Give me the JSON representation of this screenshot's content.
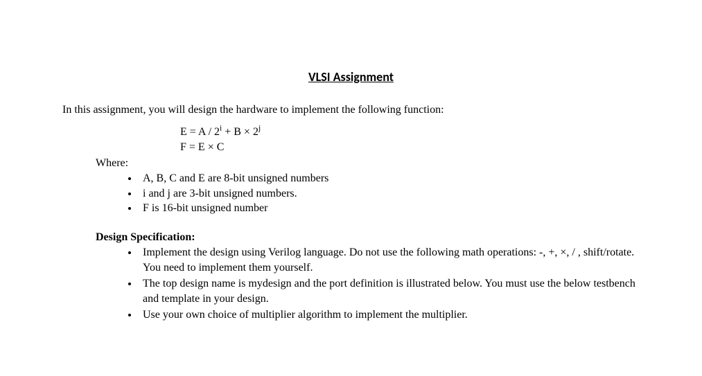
{
  "title": "VLSI Assignment",
  "intro": "In this assignment, you will design the hardware to implement the following function:",
  "eq1_lhs": "E = A / 2",
  "eq1_sup1": "i",
  "eq1_mid": "   +   B × 2",
  "eq1_sup2": "j",
  "eq2": "F  = E × C",
  "where_label": "Where:",
  "where_items": [
    "A, B, C and E are 8-bit unsigned numbers",
    "i and j are 3-bit unsigned numbers.",
    "F is 16-bit unsigned number"
  ],
  "spec_heading": "Design Specification:",
  "spec_items": [
    "Implement the design using Verilog language. Do not use the following math operations: -, +, ×, / , shift/rotate.   You need to implement them yourself.",
    "The top design name is mydesign and the port definition is illustrated below. You must use the below testbench and template in your design.",
    "Use your own choice of multiplier algorithm to implement the multiplier."
  ]
}
